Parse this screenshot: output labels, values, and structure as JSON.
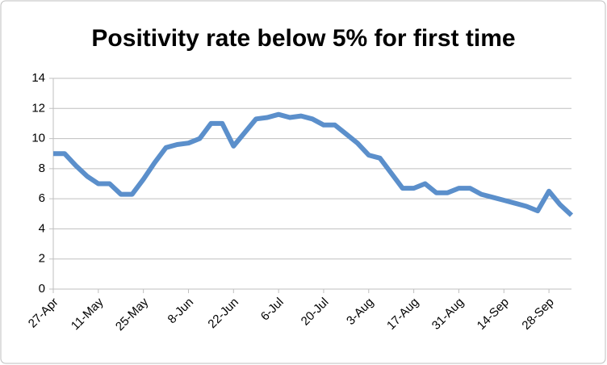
{
  "chart_data": {
    "type": "line",
    "title": "Positivity rate below 5% for first time",
    "categories": [
      "27-Apr",
      null,
      null,
      null,
      "11-May",
      null,
      null,
      null,
      "25-May",
      null,
      null,
      null,
      "8-Jun",
      null,
      null,
      null,
      "22-Jun",
      null,
      null,
      null,
      "6-Jul",
      null,
      null,
      null,
      "20-Jul",
      null,
      null,
      null,
      "3-Aug",
      null,
      null,
      null,
      "17-Aug",
      null,
      null,
      null,
      "31-Aug",
      null,
      null,
      null,
      "14-Sep",
      null,
      null,
      null,
      "28-Sep",
      null,
      null
    ],
    "series": [
      {
        "name": "Positivity rate",
        "color": "#5b8fcb",
        "values": [
          9.0,
          9.0,
          8.2,
          7.5,
          7.0,
          7.0,
          6.3,
          6.3,
          7.3,
          8.4,
          9.4,
          9.6,
          9.7,
          10.0,
          11.0,
          11.0,
          9.5,
          10.4,
          11.3,
          11.4,
          11.6,
          11.4,
          11.5,
          11.3,
          10.9,
          10.9,
          10.3,
          9.7,
          8.9,
          8.7,
          7.7,
          6.7,
          6.7,
          7.0,
          6.4,
          6.4,
          6.7,
          6.7,
          6.3,
          6.1,
          5.9,
          5.7,
          5.5,
          5.2,
          6.5,
          5.6,
          4.9
        ]
      }
    ],
    "ylim": [
      0,
      14
    ],
    "yticks": [
      0,
      2,
      4,
      6,
      8,
      10,
      12,
      14
    ],
    "grid": true
  }
}
